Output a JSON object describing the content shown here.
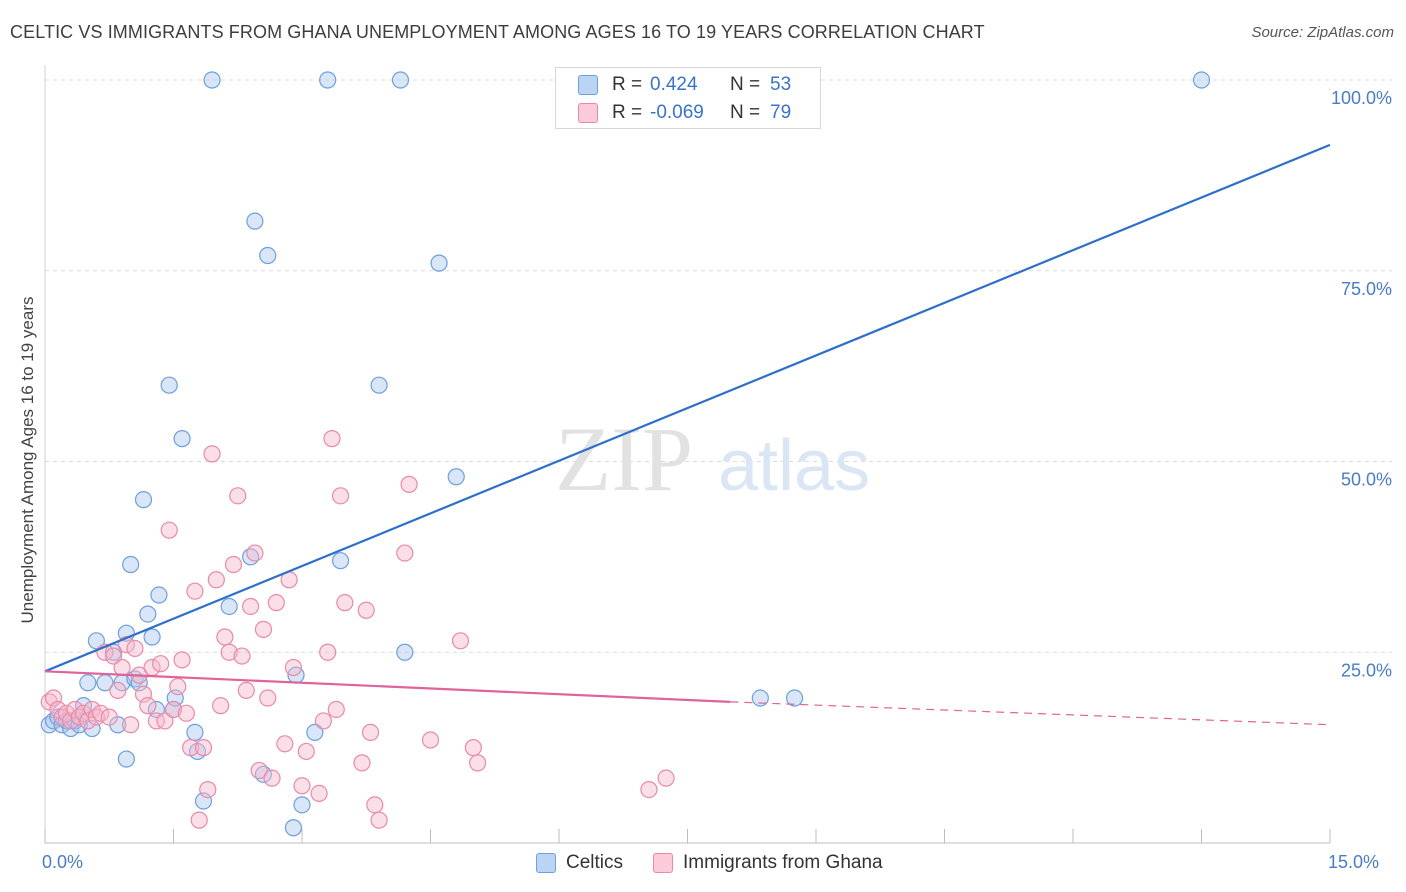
{
  "header": {
    "title": "CELTIC VS IMMIGRANTS FROM GHANA UNEMPLOYMENT AMONG AGES 16 TO 19 YEARS CORRELATION CHART",
    "source": "Source: ZipAtlas.com"
  },
  "watermark": {
    "zip": "ZIP",
    "atlas": "atlas"
  },
  "legend_top": {
    "rows": [
      {
        "r_label": "R =",
        "r_value": "0.424",
        "n_label": "N =",
        "n_value": "53",
        "color": "#a9c8f0"
      },
      {
        "r_label": "R =",
        "r_value": "-0.069",
        "n_label": "N =",
        "n_value": "79",
        "color": "#f7b9cc"
      }
    ]
  },
  "legend_bottom": {
    "items": [
      {
        "label": "Celtics",
        "color": "#a9c8f0"
      },
      {
        "label": "Immigrants from Ghana",
        "color": "#f7b9cc"
      }
    ]
  },
  "colors": {
    "blue_fill": "#a9c8f0",
    "blue_stroke": "#6f9fdc",
    "blue_line": "#2f6fcb",
    "pink_fill": "#f7b9cc",
    "pink_stroke": "#e88aa8",
    "pink_line": "#e0639a",
    "grid": "#dcdcdc",
    "axis_label": "#4a7cc4"
  },
  "chart_data": {
    "type": "scatter",
    "title": "CELTIC VS IMMIGRANTS FROM GHANA UNEMPLOYMENT AMONG AGES 16 TO 19 YEARS CORRELATION CHART",
    "xlabel": "",
    "ylabel": "Unemployment Among Ages 16 to 19 years",
    "xlim": [
      0,
      15
    ],
    "ylim": [
      0,
      100
    ],
    "x_tick_labels": [
      "0.0%",
      "15.0%"
    ],
    "y_ticks": [
      25,
      50,
      75,
      100
    ],
    "y_tick_labels": [
      "25.0%",
      "50.0%",
      "75.0%",
      "100.0%"
    ],
    "grid": true,
    "series": [
      {
        "name": "Celtics",
        "points": [
          [
            0.05,
            15.5
          ],
          [
            0.1,
            16.0
          ],
          [
            0.15,
            16.5
          ],
          [
            0.2,
            15.5
          ],
          [
            0.25,
            16.0
          ],
          [
            0.3,
            15.0
          ],
          [
            0.35,
            16.0
          ],
          [
            0.4,
            15.5
          ],
          [
            0.45,
            18.0
          ],
          [
            0.5,
            21.0
          ],
          [
            0.6,
            26.5
          ],
          [
            0.7,
            21.0
          ],
          [
            0.8,
            25.0
          ],
          [
            0.85,
            15.5
          ],
          [
            0.9,
            21.0
          ],
          [
            0.95,
            27.5
          ],
          [
            1.0,
            36.5
          ],
          [
            1.05,
            21.5
          ],
          [
            1.1,
            21.0
          ],
          [
            1.15,
            45.0
          ],
          [
            1.2,
            30.0
          ],
          [
            1.25,
            27.0
          ],
          [
            1.3,
            17.5
          ],
          [
            1.33,
            32.5
          ],
          [
            1.45,
            60.0
          ],
          [
            1.5,
            17.5
          ],
          [
            1.52,
            19.0
          ],
          [
            1.6,
            53.0
          ],
          [
            1.75,
            14.5
          ],
          [
            1.78,
            12.0
          ],
          [
            1.85,
            5.5
          ],
          [
            1.95,
            100.0
          ],
          [
            2.15,
            31.0
          ],
          [
            2.4,
            37.5
          ],
          [
            2.45,
            81.5
          ],
          [
            2.55,
            9.0
          ],
          [
            2.6,
            77.0
          ],
          [
            2.9,
            2.0
          ],
          [
            2.93,
            22.0
          ],
          [
            3.0,
            5.0
          ],
          [
            3.15,
            14.5
          ],
          [
            3.3,
            100.0
          ],
          [
            3.45,
            37.0
          ],
          [
            3.9,
            60.0
          ],
          [
            4.15,
            100.0
          ],
          [
            4.2,
            25.0
          ],
          [
            4.6,
            76.0
          ],
          [
            4.8,
            48.0
          ],
          [
            8.35,
            19.0
          ],
          [
            8.75,
            19.0
          ],
          [
            13.5,
            100.0
          ],
          [
            0.95,
            11.0
          ],
          [
            0.55,
            15.0
          ]
        ]
      },
      {
        "name": "Immigrants from Ghana",
        "points": [
          [
            0.05,
            18.5
          ],
          [
            0.1,
            19.0
          ],
          [
            0.15,
            17.5
          ],
          [
            0.2,
            16.5
          ],
          [
            0.25,
            17.0
          ],
          [
            0.3,
            16.0
          ],
          [
            0.35,
            17.5
          ],
          [
            0.4,
            16.5
          ],
          [
            0.45,
            17.0
          ],
          [
            0.5,
            16.0
          ],
          [
            0.55,
            17.5
          ],
          [
            0.6,
            16.5
          ],
          [
            0.65,
            17.0
          ],
          [
            0.7,
            25.0
          ],
          [
            0.75,
            16.5
          ],
          [
            0.8,
            24.5
          ],
          [
            0.85,
            20.0
          ],
          [
            0.9,
            23.0
          ],
          [
            0.95,
            26.0
          ],
          [
            1.0,
            15.5
          ],
          [
            1.05,
            25.5
          ],
          [
            1.1,
            22.0
          ],
          [
            1.15,
            19.5
          ],
          [
            1.2,
            18.0
          ],
          [
            1.25,
            23.0
          ],
          [
            1.3,
            16.0
          ],
          [
            1.35,
            23.5
          ],
          [
            1.4,
            16.0
          ],
          [
            1.45,
            41.0
          ],
          [
            1.5,
            17.5
          ],
          [
            1.55,
            20.5
          ],
          [
            1.6,
            24.0
          ],
          [
            1.65,
            17.0
          ],
          [
            1.7,
            12.5
          ],
          [
            1.75,
            33.0
          ],
          [
            1.8,
            3.0
          ],
          [
            1.85,
            12.5
          ],
          [
            1.9,
            7.0
          ],
          [
            1.95,
            51.0
          ],
          [
            2.0,
            34.5
          ],
          [
            2.05,
            18.0
          ],
          [
            2.1,
            27.0
          ],
          [
            2.15,
            25.0
          ],
          [
            2.2,
            36.5
          ],
          [
            2.25,
            45.5
          ],
          [
            2.3,
            24.5
          ],
          [
            2.35,
            20.0
          ],
          [
            2.4,
            31.0
          ],
          [
            2.45,
            38.0
          ],
          [
            2.5,
            9.5
          ],
          [
            2.55,
            28.0
          ],
          [
            2.6,
            19.0
          ],
          [
            2.65,
            8.5
          ],
          [
            2.7,
            31.5
          ],
          [
            2.8,
            13.0
          ],
          [
            2.85,
            34.5
          ],
          [
            2.9,
            23.0
          ],
          [
            3.0,
            7.5
          ],
          [
            3.05,
            12.0
          ],
          [
            3.2,
            6.5
          ],
          [
            3.25,
            16.0
          ],
          [
            3.3,
            25.0
          ],
          [
            3.35,
            53.0
          ],
          [
            3.4,
            17.5
          ],
          [
            3.45,
            45.5
          ],
          [
            3.5,
            31.5
          ],
          [
            3.7,
            10.5
          ],
          [
            3.75,
            30.5
          ],
          [
            3.8,
            14.5
          ],
          [
            3.85,
            5.0
          ],
          [
            3.9,
            3.0
          ],
          [
            4.2,
            38.0
          ],
          [
            4.25,
            47.0
          ],
          [
            4.5,
            13.5
          ],
          [
            4.85,
            26.5
          ],
          [
            5.0,
            12.5
          ],
          [
            5.05,
            10.5
          ],
          [
            7.05,
            7.0
          ],
          [
            7.25,
            8.5
          ]
        ]
      }
    ],
    "trend_lines": [
      {
        "series": "Celtics",
        "x": [
          0.0,
          15.0
        ],
        "y": [
          22.5,
          91.5
        ],
        "style": "solid"
      },
      {
        "series": "Immigrants from Ghana",
        "x": [
          0.0,
          8.0
        ],
        "y": [
          22.5,
          18.5
        ],
        "style": "solid"
      },
      {
        "series": "Immigrants from Ghana",
        "x": [
          8.0,
          15.0
        ],
        "y": [
          18.5,
          15.5
        ],
        "style": "dashed"
      }
    ]
  },
  "y_axis_title": "Unemployment Among Ages 16 to 19 years"
}
